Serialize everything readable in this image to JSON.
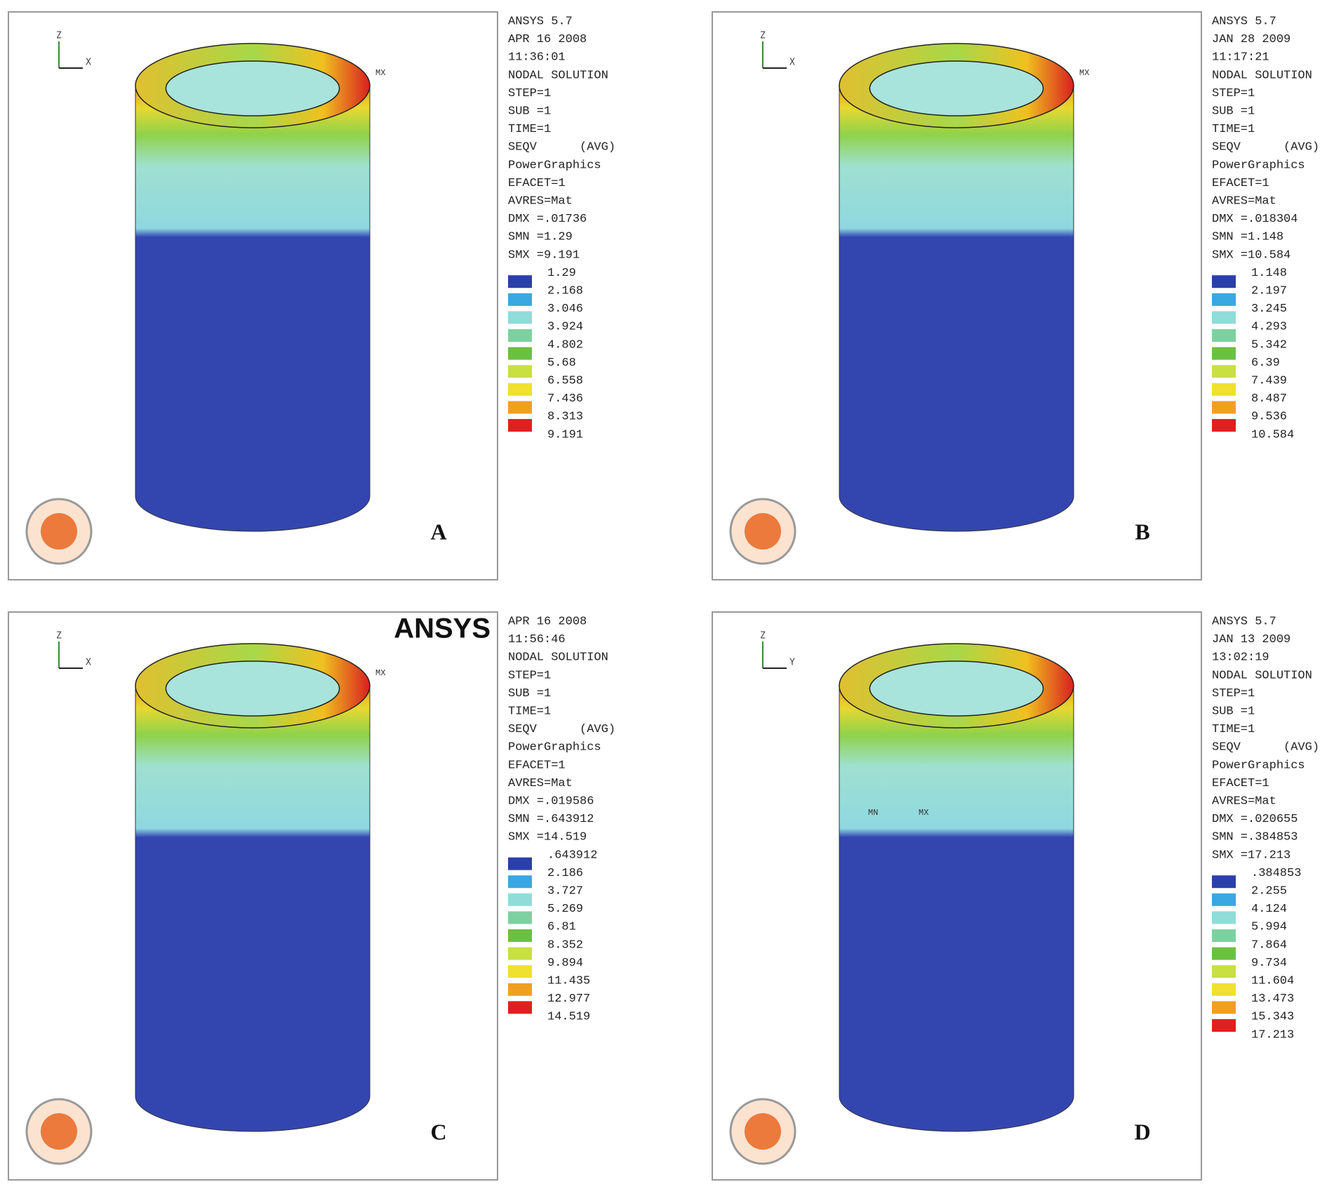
{
  "panels": [
    {
      "label": "A",
      "axes": [
        "Z",
        "X"
      ],
      "markers": [
        "MX"
      ],
      "info": [
        "ANSYS 5.7",
        "APR 16 2008",
        "11:36:01",
        "NODAL SOLUTION",
        "STEP=1",
        "SUB =1",
        "TIME=1",
        "SEQV      (AVG)",
        "PowerGraphics",
        "EFACET=1",
        "AVRES=Mat",
        "DMX =.01736",
        "SMN =1.29",
        "SMX =9.191"
      ],
      "legend": [
        "1.29",
        "2.168",
        "3.046",
        "3.924",
        "4.802",
        "5.68",
        "6.558",
        "7.436",
        "8.313",
        "9.191"
      ]
    },
    {
      "label": "B",
      "axes": [
        "Z",
        "X"
      ],
      "markers": [
        "MX"
      ],
      "info": [
        "ANSYS 5.7",
        "JAN 28 2009",
        "11:17:21",
        "NODAL SOLUTION",
        "STEP=1",
        "SUB =1",
        "TIME=1",
        "SEQV      (AVG)",
        "PowerGraphics",
        "EFACET=1",
        "AVRES=Mat",
        "DMX =.018304",
        "SMN =1.148",
        "SMX =10.584"
      ],
      "legend": [
        "1.148",
        "2.197",
        "3.245",
        "4.293",
        "5.342",
        "6.39",
        "7.439",
        "8.487",
        "9.536",
        "10.584"
      ]
    },
    {
      "label": "C",
      "axes": [
        "Z",
        "X"
      ],
      "markers": [
        "MX"
      ],
      "logo": "ANSYS",
      "info": [
        "APR 16 2008",
        "11:56:46",
        "NODAL SOLUTION",
        "STEP=1",
        "SUB =1",
        "TIME=1",
        "SEQV      (AVG)",
        "PowerGraphics",
        "EFACET=1",
        "AVRES=Mat",
        "DMX =.019586",
        "SMN =.643912",
        "SMX =14.519"
      ],
      "legend": [
        ".643912",
        "2.186",
        "3.727",
        "5.269",
        "6.81",
        "8.352",
        "9.894",
        "11.435",
        "12.977",
        "14.519"
      ]
    },
    {
      "label": "D",
      "axes": [
        "Z",
        "Y"
      ],
      "markers": [
        "MN",
        "MX"
      ],
      "info": [
        "ANSYS 5.7",
        "JAN 13 2009",
        "13:02:19",
        "NODAL SOLUTION",
        "STEP=1",
        "SUB =1",
        "TIME=1",
        "SEQV      (AVG)",
        "PowerGraphics",
        "EFACET=1",
        "AVRES=Mat",
        "DMX =.020655",
        "SMN =.384853",
        "SMX =17.213"
      ],
      "legend": [
        ".384853",
        "2.255",
        "4.124",
        "5.994",
        "7.864",
        "9.734",
        "11.604",
        "13.473",
        "15.343",
        "17.213"
      ]
    }
  ]
}
